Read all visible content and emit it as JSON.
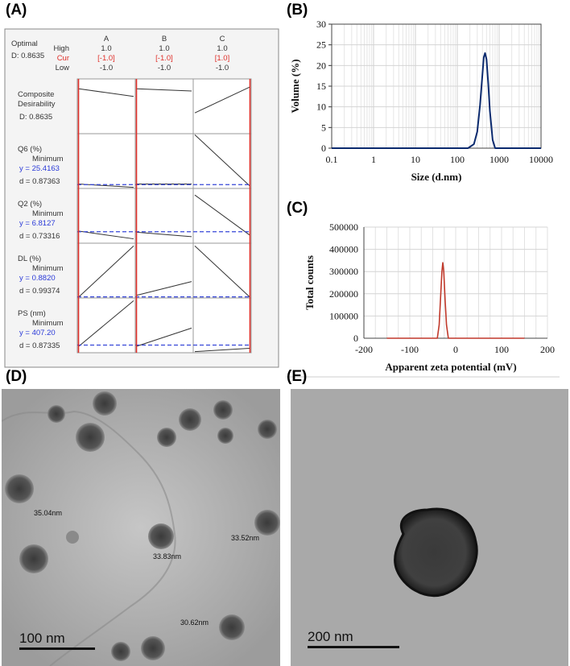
{
  "panels": {
    "a": {
      "label": "(A)",
      "optimal_title": "Optimal",
      "optimal_value": "D: 0.8635",
      "row_labels": [
        "High",
        "Cur",
        "Low"
      ],
      "factors": [
        {
          "name": "A",
          "high": "1.0",
          "cur": "[-1.0]",
          "low": "-1.0"
        },
        {
          "name": "B",
          "high": "1.0",
          "cur": "[-1.0]",
          "low": "-1.0"
        },
        {
          "name": "C",
          "high": "1.0",
          "cur": "[1.0]",
          "low": "-1.0"
        }
      ],
      "responses": [
        {
          "title_lines": [
            "Composite",
            "Desirability"
          ],
          "goal": "",
          "y": "",
          "d": "D: 0.8635"
        },
        {
          "title_lines": [
            "Q6 (%)"
          ],
          "goal": "Minimum",
          "y": "y = 25.4163",
          "d": "d = 0.87363"
        },
        {
          "title_lines": [
            "Q2 (%)"
          ],
          "goal": "Minimum",
          "y": "y = 6.8127",
          "d": "d = 0.73316"
        },
        {
          "title_lines": [
            "DL (%)"
          ],
          "goal": "Minimum",
          "y": "y = 0.8820",
          "d": "d = 0.99374"
        },
        {
          "title_lines": [
            "PS (nm)"
          ],
          "goal": "Minimum",
          "y": "y = 407.20",
          "d": "d = 0.87335"
        }
      ],
      "colors": {
        "cur": "#e0302a",
        "y_text": "#2a3ad8",
        "ref_line": "#3646d8",
        "vline": "#e0302a"
      }
    },
    "b": {
      "label": "(B)"
    },
    "c": {
      "label": "(C)"
    },
    "d": {
      "label": "(D)",
      "scale_bar": "100 nm",
      "measurements": [
        "35.04nm",
        "33.83nm",
        "33.52nm",
        "30.62nm"
      ]
    },
    "e": {
      "label": "(E)",
      "scale_bar": "200 nm"
    }
  },
  "chart_data": [
    {
      "type": "line",
      "panel": "B",
      "xlabel": "Size (d.nm)",
      "ylabel": "Volume (%)",
      "xscale": "log",
      "xlim": [
        0.1,
        10000
      ],
      "ylim": [
        0,
        30
      ],
      "x_ticks": [
        "0.1",
        "1",
        "10",
        "100",
        "1000",
        "10000"
      ],
      "y_ticks": [
        "0",
        "5",
        "10",
        "15",
        "20",
        "25",
        "30"
      ],
      "grid": true,
      "series": [
        {
          "color": "#0b2a6e",
          "x": [
            0.1,
            180,
            250,
            300,
            350,
            400,
            430,
            460,
            500,
            550,
            600,
            700,
            800,
            10000
          ],
          "y": [
            0,
            0,
            1.0,
            4.0,
            10.5,
            18.0,
            22.0,
            23.0,
            21.5,
            15.5,
            9.0,
            2.0,
            0,
            0
          ]
        }
      ]
    },
    {
      "type": "line",
      "panel": "C",
      "xlabel": "Apparent zeta potential (mV)",
      "ylabel": "Total counts",
      "xlim": [
        -200,
        200
      ],
      "ylim": [
        0,
        500000
      ],
      "x_ticks": [
        "-200",
        "-100",
        "0",
        "100",
        "200"
      ],
      "y_ticks": [
        "0",
        "100000",
        "200000",
        "300000",
        "400000",
        "500000"
      ],
      "grid": true,
      "series": [
        {
          "color": "#c0392b",
          "x": [
            -150,
            -40,
            -36,
            -33,
            -30,
            -28,
            -26,
            -23,
            -20,
            -16,
            150
          ],
          "y": [
            0,
            0,
            60000,
            180000,
            300000,
            340000,
            300000,
            170000,
            60000,
            0,
            0
          ]
        }
      ]
    }
  ]
}
